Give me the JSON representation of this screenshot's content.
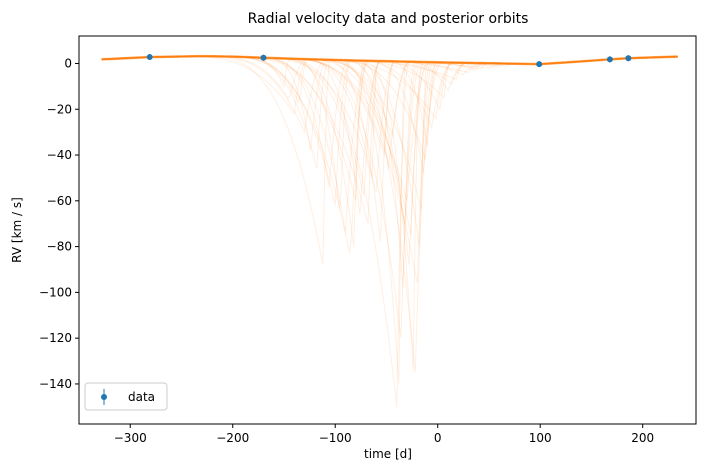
{
  "chart_data": {
    "type": "line",
    "title": "Radial velocity data and posterior orbits",
    "xlabel": "time [d]",
    "ylabel": "RV [km / s]",
    "xlim": [
      -350,
      252
    ],
    "ylim": [
      -157.5,
      12
    ],
    "xticks": [
      -300,
      -200,
      -100,
      0,
      100,
      200
    ],
    "yticks": [
      0,
      -20,
      -40,
      -60,
      -80,
      -100,
      -120,
      -140
    ],
    "grid": false,
    "legend_position": "lower-left",
    "colors": {
      "data": "#1f77b4",
      "orbits": "#ff7f0e",
      "axis": "#000000",
      "background": "#ffffff"
    },
    "series": [
      {
        "name": "data",
        "kind": "errorbar-points",
        "x": [
          -281,
          -170,
          99,
          168,
          186
        ],
        "y": [
          2.8,
          2.5,
          -0.3,
          1.8,
          2.3
        ]
      },
      {
        "kind": "posterior-orbits",
        "x_range": [
          -328,
          234
        ],
        "baseline": {
          "x": [
            -328,
            -280,
            -230,
            -200,
            -170,
            -130,
            -80,
            -30,
            0,
            50,
            99,
            130,
            168,
            186,
            234
          ],
          "y": [
            1.8,
            2.8,
            3.2,
            3.0,
            2.5,
            1.9,
            1.3,
            0.8,
            0.5,
            0.1,
            -0.3,
            0.6,
            1.8,
            2.3,
            3.0
          ]
        },
        "dip_minima": {
          "time": [
            -150,
            -145,
            -140,
            -135,
            -130,
            -124,
            -118,
            -112,
            -106,
            -100,
            -95,
            -90,
            -85,
            -82,
            -80,
            -76,
            -72,
            -68,
            -64,
            -60,
            -56,
            -52,
            -48,
            -44,
            -40,
            -38,
            -36,
            -34,
            -32,
            -30,
            -28,
            -26,
            -24,
            -22,
            -20,
            -18,
            -16,
            -14,
            -12,
            -10,
            -6,
            -2,
            2,
            6,
            10,
            14,
            18,
            24,
            30,
            36,
            42,
            50,
            58,
            66
          ],
          "rv": [
            -10,
            -16,
            -22,
            -18,
            -30,
            -38,
            -46,
            -88,
            -54,
            -62,
            -68,
            -74,
            -85,
            -80,
            -60,
            -66,
            -58,
            -70,
            -50,
            -56,
            -78,
            -40,
            -46,
            -32,
            -150,
            -140,
            -120,
            -98,
            -70,
            -60,
            -88,
            -75,
            -134,
            -135,
            -96,
            -80,
            -64,
            -48,
            -42,
            -36,
            -28,
            -24,
            -20,
            -15,
            -12,
            -9,
            -7,
            -5,
            -4,
            -3,
            -2.5,
            -2,
            -1.5,
            -1
          ]
        }
      }
    ],
    "legend": [
      {
        "label": "data",
        "marker": "errorbar-point"
      }
    ]
  }
}
